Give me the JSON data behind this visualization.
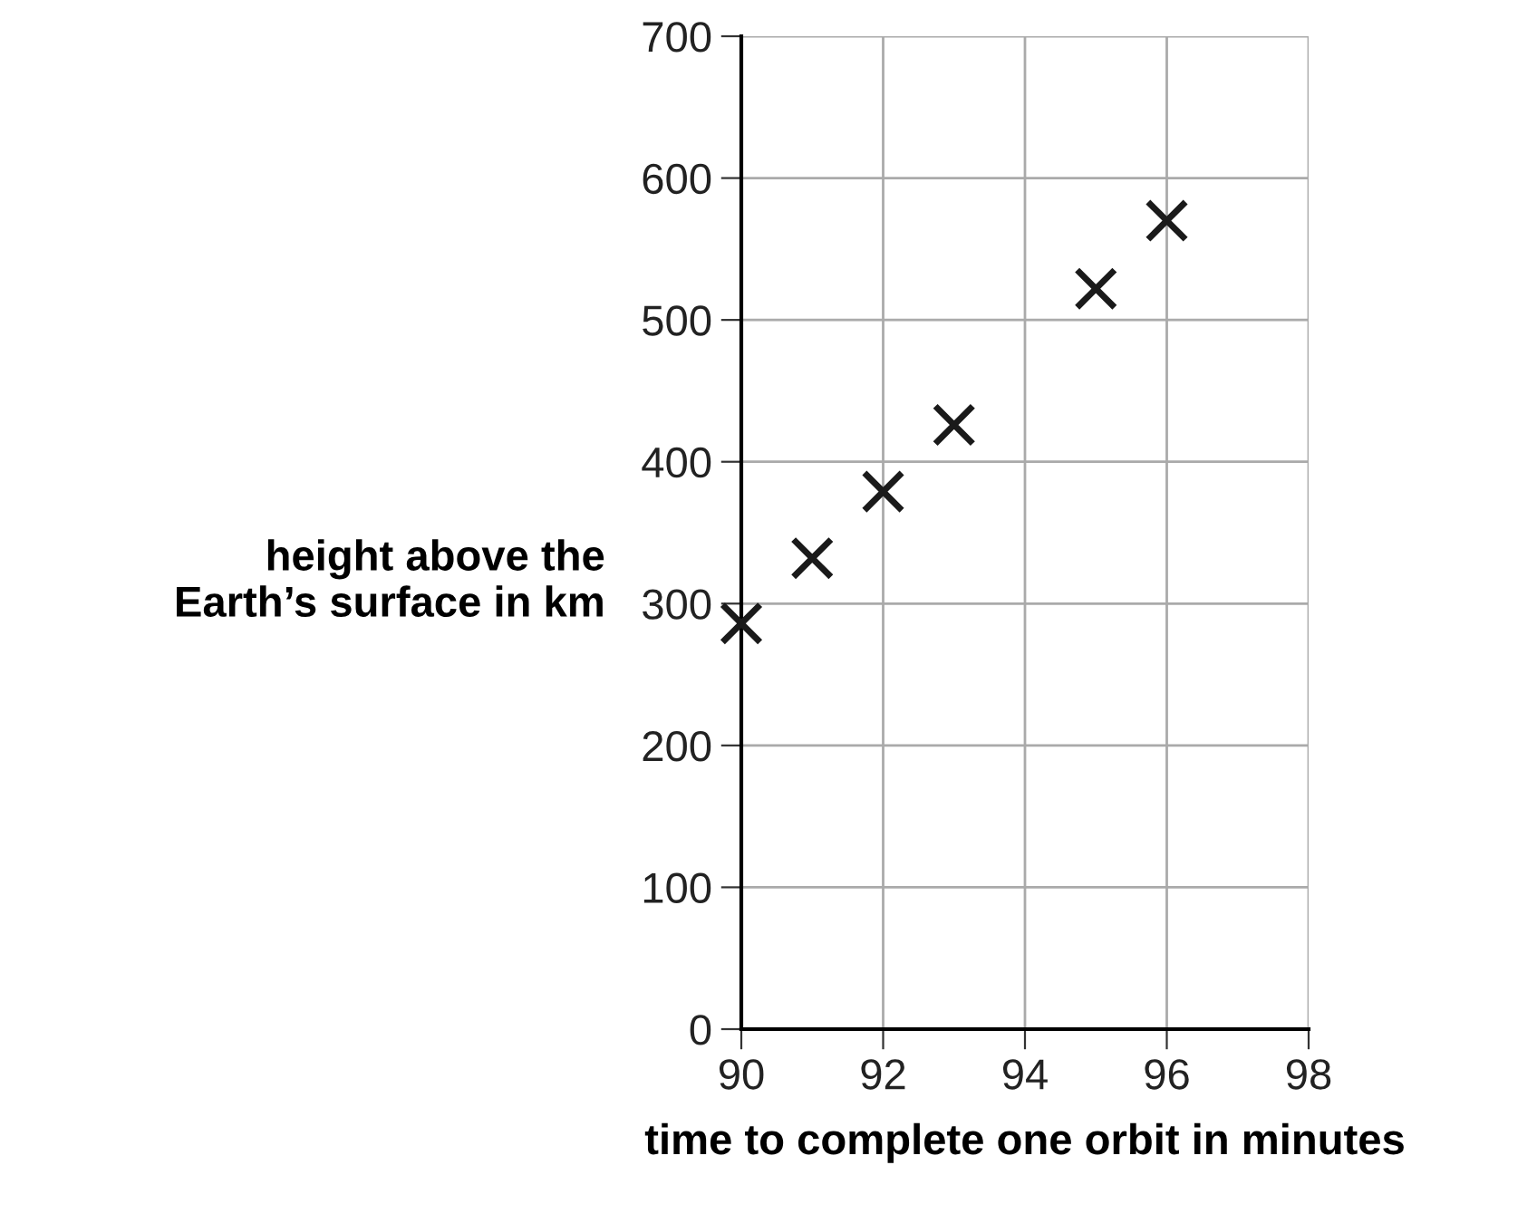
{
  "chart_data": {
    "type": "scatter",
    "xlabel": "time to complete one orbit in minutes",
    "ylabel": "height above the\nEarth’s surface in km",
    "x": [
      90,
      91,
      92,
      93,
      95,
      96
    ],
    "series": [
      {
        "color": "#1a1a1a",
        "values": [
          286,
          332,
          379,
          426,
          522,
          570
        ]
      }
    ],
    "xlim": [
      90,
      98
    ],
    "xticks": [
      90,
      92,
      94,
      96,
      98
    ],
    "ylim": [
      0,
      700
    ],
    "yticks": [
      0,
      100,
      200,
      300,
      400,
      500,
      600,
      700
    ],
    "grid": true,
    "marker": "cross",
    "legend": false
  }
}
